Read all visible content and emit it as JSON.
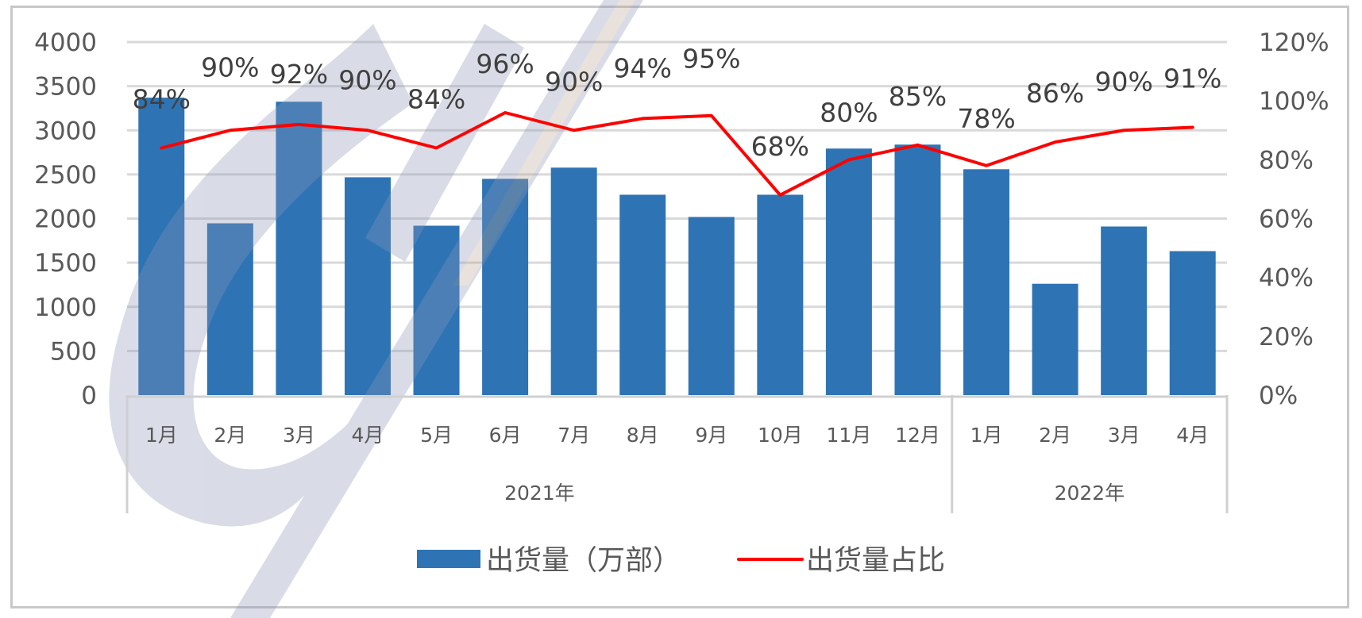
{
  "chart_data": {
    "type": "bar+line",
    "title": "",
    "xlabel": "",
    "ylabel": "",
    "categories": [
      "1月",
      "2月",
      "3月",
      "4月",
      "5月",
      "6月",
      "7月",
      "8月",
      "9月",
      "10月",
      "11月",
      "12月",
      "1月",
      "2月",
      "3月",
      "4月"
    ],
    "groups": [
      {
        "label": "2021年",
        "start": 0,
        "end": 11
      },
      {
        "label": "2022年",
        "start": 12,
        "end": 15
      }
    ],
    "series": [
      {
        "name": "出货量（万部）",
        "type": "bar",
        "axis": "left",
        "color": "#2e74b5",
        "values": [
          3370,
          1946,
          3324,
          2468,
          1919,
          2450,
          2577,
          2270,
          2018,
          2270,
          2793,
          2838,
          2559,
          1261,
          1910,
          1631
        ]
      },
      {
        "name": "出货量占比",
        "type": "line",
        "axis": "right",
        "color": "#ff0000",
        "values": [
          84,
          90,
          92,
          90,
          84,
          96,
          90,
          94,
          95,
          68,
          80,
          85,
          78,
          86,
          90,
          91
        ],
        "labels": [
          "84%",
          "90%",
          "92%",
          "90%",
          "84%",
          "96%",
          "90%",
          "94%",
          "95%",
          "68%",
          "80%",
          "85%",
          "78%",
          "86%",
          "90%",
          "91%"
        ]
      }
    ],
    "left_axis": {
      "min": 0,
      "max": 4000,
      "step": 500,
      "ticks": [
        "0",
        "500",
        "1000",
        "1500",
        "2000",
        "2500",
        "3000",
        "3500",
        "4000"
      ]
    },
    "right_axis": {
      "min": 0,
      "max": 120,
      "step": 20,
      "ticks": [
        "0%",
        "20%",
        "40%",
        "60%",
        "80%",
        "100%",
        "120%"
      ]
    },
    "grid": true,
    "legend_position": "bottom",
    "legend": [
      {
        "label": "出货量（万部）",
        "swatch": "bar",
        "color": "#2e74b5"
      },
      {
        "label": "出货量占比",
        "swatch": "line",
        "color": "#ff0000"
      }
    ]
  },
  "style": {
    "grid_color": "#d9d9d9",
    "axis_color": "#d0d0d0",
    "frame_color": "#c8c8c8",
    "watermark_color": "#8c96b8"
  }
}
